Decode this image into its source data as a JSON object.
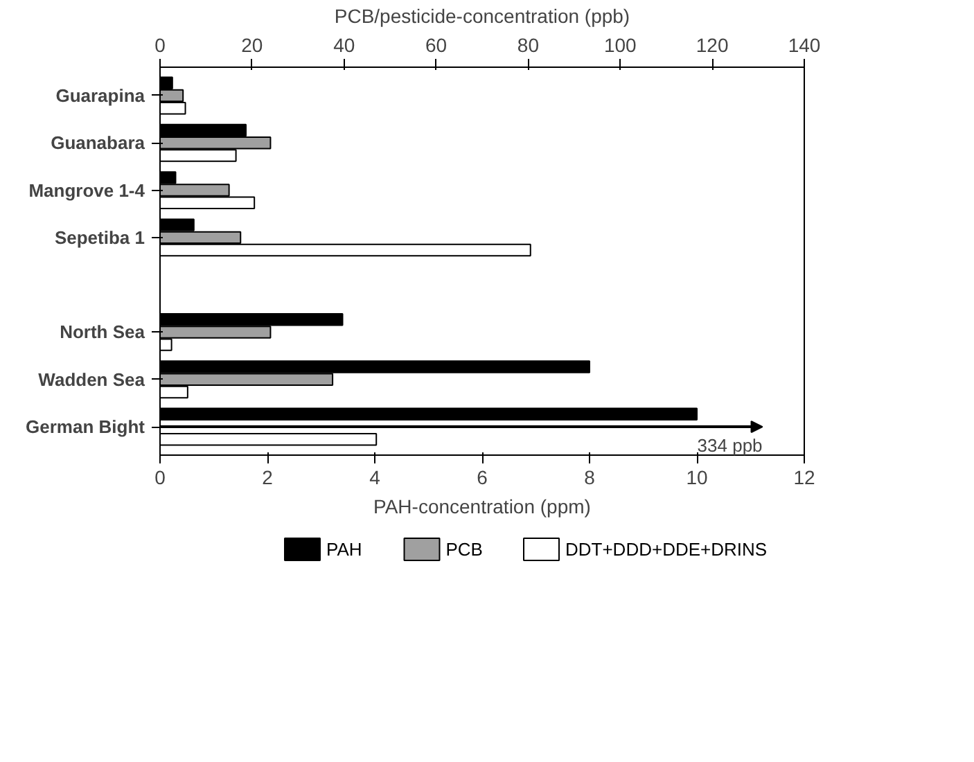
{
  "chart_data": {
    "type": "bar",
    "orientation": "horizontal",
    "categories": [
      "Guarapina",
      "Guanabara",
      "Mangrove 1-4",
      "Sepetiba 1",
      null,
      "North Sea",
      "Wadden Sea",
      "German Bight"
    ],
    "series": [
      {
        "name": "PAH",
        "color": "#000000",
        "values": [
          0.23,
          1.6,
          0.29,
          0.63,
          null,
          3.4,
          8.0,
          10.0
        ]
      },
      {
        "name": "PCB",
        "color": "#a0a0a0",
        "axis": "x2",
        "values": [
          5,
          24,
          15,
          17.5,
          null,
          24,
          37.5,
          null
        ]
      },
      {
        "name": "DDT+DDD+DDE+DRINS",
        "color": "#ffffff",
        "axis": "x2",
        "values": [
          5.5,
          16.5,
          20.5,
          80.5,
          null,
          2.5,
          6,
          47
        ]
      }
    ],
    "annotations": [
      "334 ppb"
    ],
    "xlabel": "PAH-concentration (ppm)",
    "xlim": [
      0,
      12
    ],
    "xticks": [
      0,
      2,
      4,
      6,
      8,
      10,
      12
    ],
    "x2label": "PCB/pesticide-concentration (ppb)",
    "x2lim": [
      0,
      140
    ],
    "x2ticks": [
      0,
      20,
      40,
      60,
      80,
      100,
      120,
      140
    ],
    "legend": "bottom"
  }
}
